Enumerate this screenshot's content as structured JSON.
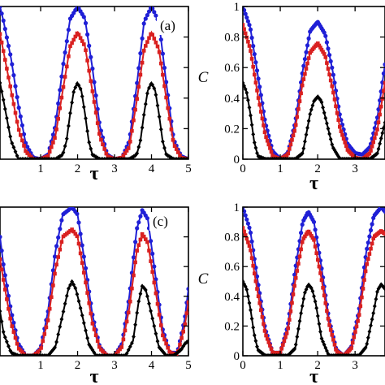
{
  "chart_data": [
    {
      "type": "line",
      "panel_label": "(a)",
      "xlabel": "τ",
      "ylabel": "",
      "xlim": [
        -0.1,
        5
      ],
      "ylim": [
        0,
        1
      ],
      "x_ticks": [
        1,
        2,
        3,
        4,
        5
      ],
      "y_ticks": [],
      "grid": false,
      "series": [
        {
          "color": "#1f1fd6",
          "marker": "circle",
          "x": [
            -0.1,
            0,
            0.2,
            0.4,
            0.6,
            0.8,
            1.0,
            1.2,
            1.4,
            1.6,
            1.8,
            2.0,
            2.2,
            2.4,
            2.6,
            2.8,
            3.0,
            3.2,
            3.4,
            3.6,
            3.8,
            4.0,
            4.2,
            4.4,
            4.6,
            4.8,
            5.0
          ],
          "y": [
            1.0,
            0.9,
            0.66,
            0.35,
            0.1,
            0.01,
            0.0,
            0.03,
            0.22,
            0.6,
            0.92,
            1.0,
            0.92,
            0.6,
            0.22,
            0.03,
            0.0,
            0.01,
            0.12,
            0.48,
            0.9,
            1.0,
            0.9,
            0.5,
            0.13,
            0.02,
            0.0
          ]
        },
        {
          "color": "#d92020",
          "marker": "square",
          "x": [
            -0.1,
            0,
            0.2,
            0.4,
            0.6,
            0.8,
            1.0,
            1.2,
            1.4,
            1.6,
            1.8,
            2.0,
            2.2,
            2.4,
            2.6,
            2.8,
            3.0,
            3.2,
            3.4,
            3.6,
            3.8,
            4.0,
            4.2,
            4.4,
            4.6,
            4.8,
            5.0
          ],
          "y": [
            0.82,
            0.7,
            0.45,
            0.2,
            0.05,
            0.0,
            0.0,
            0.02,
            0.15,
            0.45,
            0.74,
            0.83,
            0.74,
            0.45,
            0.15,
            0.02,
            0.0,
            0.01,
            0.08,
            0.38,
            0.72,
            0.83,
            0.72,
            0.4,
            0.1,
            0.01,
            0.0
          ]
        },
        {
          "color": "#000000",
          "marker": "diamond",
          "x": [
            -0.1,
            0,
            0.2,
            0.4,
            0.6,
            0.8,
            1.0,
            1.2,
            1.4,
            1.6,
            1.7,
            1.8,
            1.9,
            2.0,
            2.1,
            2.2,
            2.3,
            2.4,
            2.6,
            2.8,
            3.0,
            3.2,
            3.4,
            3.6,
            3.7,
            3.8,
            3.9,
            4.0,
            4.1,
            4.2,
            4.3,
            4.4,
            4.6,
            4.8,
            5.0
          ],
          "y": [
            0.5,
            0.38,
            0.12,
            0.0,
            0.0,
            0.0,
            0.0,
            0.0,
            0.0,
            0.03,
            0.12,
            0.3,
            0.45,
            0.5,
            0.45,
            0.3,
            0.12,
            0.03,
            0.0,
            0.0,
            0.0,
            0.0,
            0.0,
            0.03,
            0.12,
            0.3,
            0.45,
            0.5,
            0.45,
            0.3,
            0.12,
            0.03,
            0.0,
            0.0,
            0.0
          ]
        }
      ]
    },
    {
      "type": "line",
      "panel_label": "",
      "xlabel": "τ",
      "ylabel": "C",
      "xlim": [
        0,
        3.8
      ],
      "ylim": [
        0,
        1
      ],
      "x_ticks": [
        0,
        1,
        2,
        3
      ],
      "y_ticks": [
        0,
        0.2,
        0.4,
        0.6,
        0.8,
        1
      ],
      "grid": false,
      "series": [
        {
          "color": "#1f1fd6",
          "marker": "circle",
          "x": [
            0,
            0.2,
            0.4,
            0.6,
            0.8,
            1.0,
            1.2,
            1.4,
            1.6,
            1.8,
            2.0,
            2.2,
            2.4,
            2.6,
            2.8,
            3.0,
            3.2,
            3.4,
            3.6,
            3.8
          ],
          "y": [
            1.0,
            0.86,
            0.55,
            0.24,
            0.05,
            0.0,
            0.04,
            0.24,
            0.58,
            0.84,
            0.9,
            0.82,
            0.58,
            0.28,
            0.1,
            0.04,
            0.03,
            0.08,
            0.28,
            0.62
          ]
        },
        {
          "color": "#d92020",
          "marker": "square",
          "x": [
            0,
            0.2,
            0.4,
            0.6,
            0.8,
            1.0,
            1.2,
            1.4,
            1.6,
            1.8,
            2.0,
            2.2,
            2.4,
            2.6,
            2.8,
            3.0,
            3.2,
            3.4,
            3.6,
            3.8
          ],
          "y": [
            0.88,
            0.72,
            0.42,
            0.16,
            0.02,
            0.0,
            0.03,
            0.2,
            0.5,
            0.7,
            0.76,
            0.68,
            0.46,
            0.2,
            0.06,
            0.01,
            0.0,
            0.04,
            0.2,
            0.5
          ]
        },
        {
          "color": "#000000",
          "marker": "diamond",
          "x": [
            0,
            0.1,
            0.2,
            0.3,
            0.4,
            0.6,
            0.8,
            1.0,
            1.2,
            1.4,
            1.6,
            1.8,
            1.9,
            2.0,
            2.1,
            2.2,
            2.4,
            2.6,
            2.8,
            3.0,
            3.2,
            3.4,
            3.6,
            3.8
          ],
          "y": [
            0.5,
            0.44,
            0.3,
            0.12,
            0.02,
            0.0,
            0.0,
            0.0,
            0.0,
            0.0,
            0.04,
            0.3,
            0.38,
            0.41,
            0.38,
            0.28,
            0.08,
            0.0,
            0.0,
            0.0,
            0.0,
            0.0,
            0.04,
            0.24
          ]
        }
      ]
    },
    {
      "type": "line",
      "panel_label": "(c)",
      "xlabel": "τ",
      "ylabel": "",
      "xlim": [
        -0.1,
        5
      ],
      "ylim": [
        0,
        1
      ],
      "x_ticks": [
        1,
        2,
        3,
        4,
        5
      ],
      "y_ticks": [],
      "grid": false,
      "series": [
        {
          "color": "#1f1fd6",
          "marker": "circle",
          "x": [
            -0.1,
            0,
            0.2,
            0.4,
            0.6,
            0.8,
            1.0,
            1.2,
            1.4,
            1.6,
            1.85,
            2.0,
            2.2,
            2.4,
            2.6,
            2.8,
            3.0,
            3.2,
            3.4,
            3.6,
            3.75,
            3.9,
            4.1,
            4.3,
            4.5,
            4.7,
            4.9,
            5.0
          ],
          "y": [
            0.8,
            0.6,
            0.3,
            0.08,
            0.0,
            0.0,
            0.05,
            0.3,
            0.7,
            0.95,
            1.0,
            0.95,
            0.62,
            0.28,
            0.06,
            0.0,
            0.0,
            0.08,
            0.4,
            0.85,
            0.98,
            0.92,
            0.55,
            0.18,
            0.02,
            0.02,
            0.25,
            0.45
          ]
        },
        {
          "color": "#d92020",
          "marker": "square",
          "x": [
            -0.1,
            0,
            0.2,
            0.4,
            0.6,
            0.8,
            1.0,
            1.2,
            1.4,
            1.6,
            1.85,
            2.0,
            2.2,
            2.4,
            2.6,
            2.8,
            3.0,
            3.2,
            3.4,
            3.6,
            3.75,
            3.9,
            4.1,
            4.3,
            4.5,
            4.7,
            4.9,
            5.0
          ],
          "y": [
            0.65,
            0.5,
            0.22,
            0.05,
            0.0,
            0.0,
            0.04,
            0.24,
            0.58,
            0.8,
            0.85,
            0.8,
            0.52,
            0.22,
            0.05,
            0.0,
            0.0,
            0.06,
            0.32,
            0.7,
            0.82,
            0.76,
            0.45,
            0.14,
            0.02,
            0.01,
            0.2,
            0.36
          ]
        },
        {
          "color": "#000000",
          "marker": "diamond",
          "x": [
            -0.1,
            0,
            0.2,
            0.4,
            0.6,
            0.8,
            1.0,
            1.2,
            1.4,
            1.6,
            1.75,
            1.85,
            1.95,
            2.1,
            2.3,
            2.5,
            2.7,
            2.9,
            3.1,
            3.3,
            3.5,
            3.65,
            3.75,
            3.85,
            4.0,
            4.2,
            4.4,
            4.6,
            4.8,
            4.9,
            5.0
          ],
          "y": [
            0.3,
            0.15,
            0.02,
            0.0,
            0.0,
            0.0,
            0.0,
            0.0,
            0.06,
            0.28,
            0.45,
            0.5,
            0.45,
            0.3,
            0.08,
            0.0,
            0.0,
            0.0,
            0.0,
            0.0,
            0.1,
            0.36,
            0.47,
            0.44,
            0.28,
            0.06,
            0.0,
            0.0,
            0.04,
            0.08,
            0.1
          ]
        }
      ]
    },
    {
      "type": "line",
      "panel_label": "",
      "xlabel": "τ",
      "ylabel": "C",
      "xlim": [
        0,
        3.8
      ],
      "ylim": [
        0,
        1
      ],
      "x_ticks": [
        0,
        1,
        2,
        3
      ],
      "y_ticks": [
        0,
        0.2,
        0.4,
        0.6,
        0.8,
        1
      ],
      "grid": false,
      "series": [
        {
          "color": "#1f1fd6",
          "marker": "circle",
          "x": [
            0,
            0.2,
            0.4,
            0.6,
            0.8,
            1.0,
            1.2,
            1.4,
            1.6,
            1.75,
            1.9,
            2.1,
            2.3,
            2.5,
            2.7,
            2.9,
            3.1,
            3.3,
            3.5,
            3.7,
            3.8
          ],
          "y": [
            1.0,
            0.84,
            0.5,
            0.18,
            0.02,
            0.02,
            0.2,
            0.58,
            0.9,
            0.97,
            0.9,
            0.6,
            0.25,
            0.04,
            0.0,
            0.06,
            0.3,
            0.7,
            0.94,
            1.0,
            0.97
          ]
        },
        {
          "color": "#d92020",
          "marker": "square",
          "x": [
            0,
            0.2,
            0.4,
            0.6,
            0.8,
            1.0,
            1.2,
            1.4,
            1.6,
            1.75,
            1.9,
            2.1,
            2.3,
            2.5,
            2.7,
            2.9,
            3.1,
            3.3,
            3.5,
            3.7,
            3.8
          ],
          "y": [
            0.86,
            0.72,
            0.42,
            0.15,
            0.02,
            0.02,
            0.17,
            0.5,
            0.78,
            0.84,
            0.78,
            0.52,
            0.22,
            0.03,
            0.0,
            0.05,
            0.26,
            0.6,
            0.8,
            0.84,
            0.82
          ]
        },
        {
          "color": "#000000",
          "marker": "diamond",
          "x": [
            0,
            0.1,
            0.2,
            0.3,
            0.4,
            0.6,
            0.8,
            1.0,
            1.2,
            1.4,
            1.55,
            1.65,
            1.75,
            1.85,
            1.95,
            2.1,
            2.3,
            2.5,
            2.7,
            2.9,
            3.1,
            3.3,
            3.5,
            3.6,
            3.7,
            3.8
          ],
          "y": [
            0.5,
            0.45,
            0.32,
            0.15,
            0.04,
            0.0,
            0.0,
            0.0,
            0.0,
            0.05,
            0.28,
            0.42,
            0.48,
            0.45,
            0.35,
            0.12,
            0.0,
            0.0,
            0.0,
            0.0,
            0.0,
            0.06,
            0.3,
            0.44,
            0.48,
            0.45
          ]
        }
      ]
    }
  ]
}
